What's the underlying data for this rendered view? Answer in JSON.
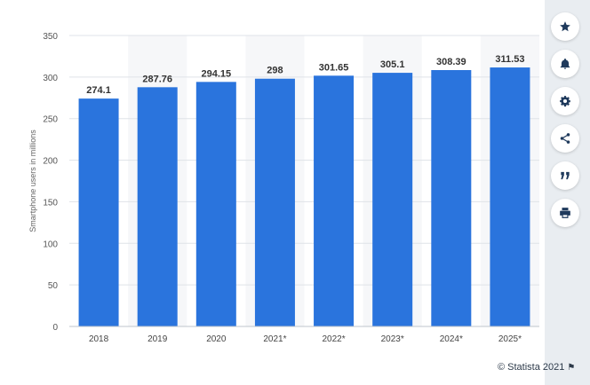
{
  "chart_data": {
    "type": "bar",
    "categories": [
      "2018",
      "2019",
      "2020",
      "2021*",
      "2022*",
      "2023*",
      "2024*",
      "2025*"
    ],
    "values": [
      274.1,
      287.76,
      294.15,
      298,
      301.65,
      305.1,
      308.39,
      311.53
    ],
    "value_labels": [
      "274.1",
      "287.76",
      "294.15",
      "298",
      "301.65",
      "305.1",
      "308.39",
      "311.53"
    ],
    "ylabel": "Smartphone users in millions",
    "ylim": [
      0,
      350
    ],
    "yticks": [
      0,
      50,
      100,
      150,
      200,
      250,
      300,
      350
    ],
    "grid": true,
    "bar_color": "#2a74dd",
    "band_color": "#f6f7f9"
  },
  "credit": {
    "text": "© Statista 2021"
  },
  "toolbar": {
    "buttons": [
      {
        "name": "favorite-button",
        "icon": "star-icon"
      },
      {
        "name": "notification-button",
        "icon": "bell-icon"
      },
      {
        "name": "settings-button",
        "icon": "gear-icon"
      },
      {
        "name": "share-button",
        "icon": "share-icon"
      },
      {
        "name": "cite-button",
        "icon": "quote-icon"
      },
      {
        "name": "print-button",
        "icon": "print-icon"
      }
    ],
    "icon_color": "#1f3a5c"
  }
}
